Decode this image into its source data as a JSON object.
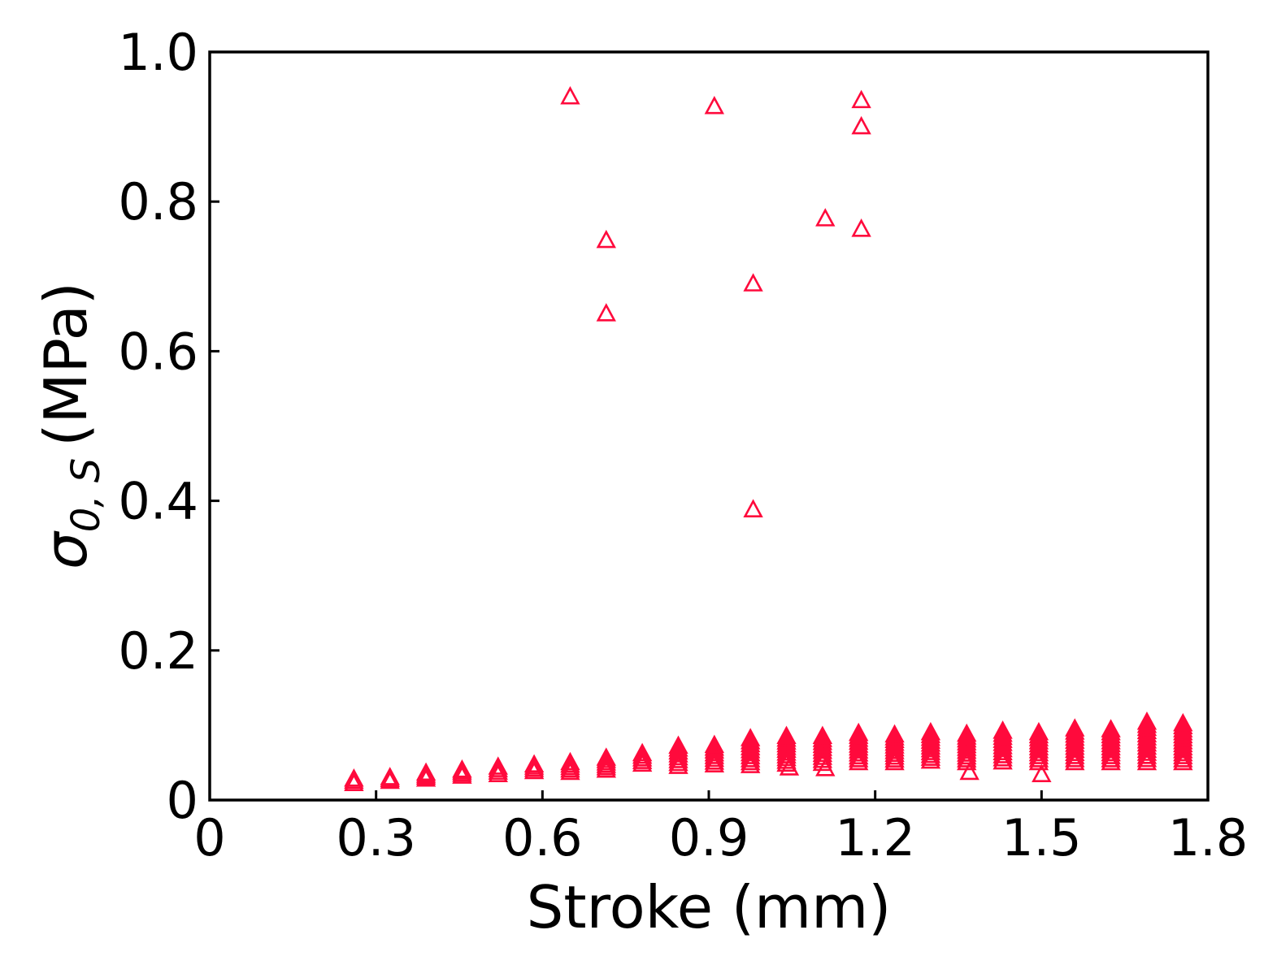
{
  "chart_data": {
    "type": "scatter",
    "xlabel": "Stroke (mm)",
    "ylabel": "σ0, S (MPa)",
    "ylabel_parts": {
      "symbol": "σ",
      "subscript": "0, S",
      "unit": "(MPa)"
    },
    "xlim": [
      0,
      1.8
    ],
    "ylim": [
      0,
      1.0
    ],
    "x_ticks": [
      0,
      0.3,
      0.6,
      0.9,
      1.2,
      1.5,
      1.8
    ],
    "x_tick_labels": [
      "0",
      "0.3",
      "0.6",
      "0.9",
      "1.2",
      "1.5",
      "1.8"
    ],
    "y_ticks": [
      0,
      0.2,
      0.4,
      0.6,
      0.8,
      1.0
    ],
    "y_tick_labels": [
      "0",
      "0.2",
      "0.4",
      "0.6",
      "0.8",
      "1.0"
    ],
    "grid": false,
    "marker": "open-triangle",
    "color": "#ff0a3c",
    "outliers": [
      {
        "x": 0.65,
        "y": 0.94
      },
      {
        "x": 0.91,
        "y": 0.927
      },
      {
        "x": 1.175,
        "y": 0.935
      },
      {
        "x": 1.175,
        "y": 0.9
      },
      {
        "x": 0.715,
        "y": 0.748
      },
      {
        "x": 0.715,
        "y": 0.65
      },
      {
        "x": 0.98,
        "y": 0.69
      },
      {
        "x": 1.11,
        "y": 0.777
      },
      {
        "x": 1.175,
        "y": 0.763
      },
      {
        "x": 0.98,
        "y": 0.388
      },
      {
        "x": 1.045,
        "y": 0.043
      },
      {
        "x": 1.11,
        "y": 0.042
      },
      {
        "x": 1.37,
        "y": 0.037
      },
      {
        "x": 1.5,
        "y": 0.034
      }
    ],
    "clusters": [
      {
        "x": 0.26,
        "ymin": 0.022,
        "ymax": 0.028
      },
      {
        "x": 0.325,
        "ymin": 0.025,
        "ymax": 0.03
      },
      {
        "x": 0.39,
        "ymin": 0.028,
        "ymax": 0.036
      },
      {
        "x": 0.455,
        "ymin": 0.032,
        "ymax": 0.04
      },
      {
        "x": 0.52,
        "ymin": 0.034,
        "ymax": 0.044
      },
      {
        "x": 0.585,
        "ymin": 0.038,
        "ymax": 0.047
      },
      {
        "x": 0.65,
        "ymin": 0.037,
        "ymax": 0.05
      },
      {
        "x": 0.715,
        "ymin": 0.04,
        "ymax": 0.056
      },
      {
        "x": 0.78,
        "ymin": 0.048,
        "ymax": 0.062
      },
      {
        "x": 0.845,
        "ymin": 0.045,
        "ymax": 0.072
      },
      {
        "x": 0.91,
        "ymin": 0.047,
        "ymax": 0.073
      },
      {
        "x": 0.975,
        "ymin": 0.046,
        "ymax": 0.082
      },
      {
        "x": 1.04,
        "ymin": 0.048,
        "ymax": 0.085
      },
      {
        "x": 1.105,
        "ymin": 0.049,
        "ymax": 0.085
      },
      {
        "x": 1.17,
        "ymin": 0.05,
        "ymax": 0.089
      },
      {
        "x": 1.235,
        "ymin": 0.05,
        "ymax": 0.087
      },
      {
        "x": 1.3,
        "ymin": 0.052,
        "ymax": 0.09
      },
      {
        "x": 1.365,
        "ymin": 0.05,
        "ymax": 0.088
      },
      {
        "x": 1.43,
        "ymin": 0.051,
        "ymax": 0.092
      },
      {
        "x": 1.495,
        "ymin": 0.05,
        "ymax": 0.09
      },
      {
        "x": 1.56,
        "ymin": 0.05,
        "ymax": 0.095
      },
      {
        "x": 1.625,
        "ymin": 0.05,
        "ymax": 0.094
      },
      {
        "x": 1.69,
        "ymin": 0.05,
        "ymax": 0.104
      },
      {
        "x": 1.755,
        "ymin": 0.05,
        "ymax": 0.102
      }
    ]
  }
}
